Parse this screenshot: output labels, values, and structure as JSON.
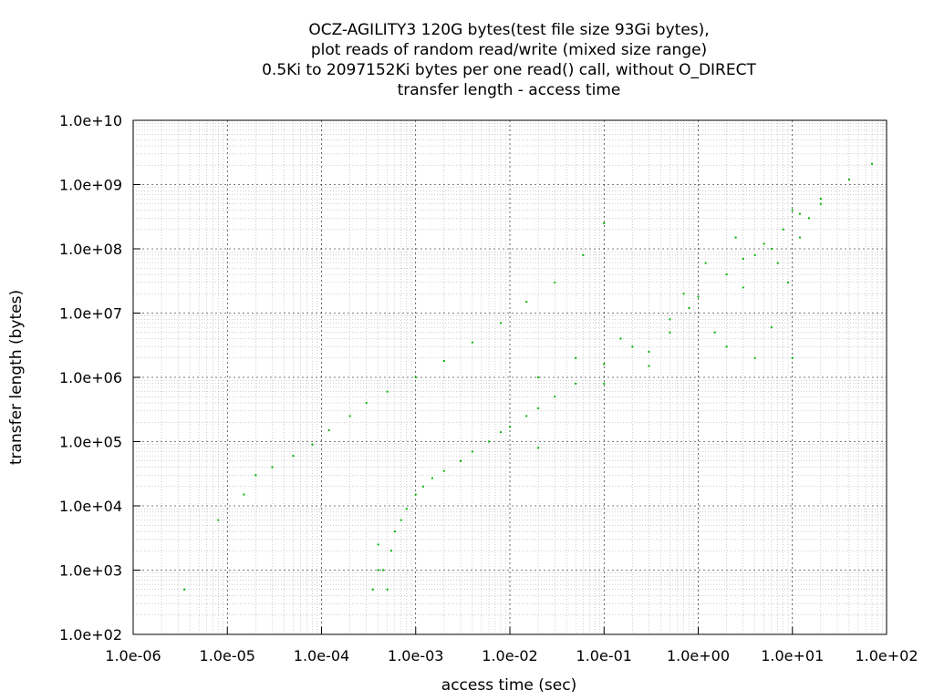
{
  "chart_data": {
    "type": "scatter",
    "title": [
      "OCZ-AGILITY3 120G bytes(test file size 93Gi bytes),",
      "plot reads of random read/write (mixed size range)",
      "0.5Ki to 2097152Ki bytes per one read() call, without O_DIRECT",
      "transfer length - access time"
    ],
    "xlabel": "access time (sec)",
    "ylabel": "transfer length (bytes)",
    "x_scale": "log",
    "y_scale": "log",
    "xlim": [
      1e-06,
      100
    ],
    "ylim": [
      100,
      10000000000.0
    ],
    "x_tick_labels": [
      "1.0e-06",
      "1.0e-05",
      "1.0e-04",
      "1.0e-03",
      "1.0e-02",
      "1.0e-01",
      "1.0e+00",
      "1.0e+01",
      "1.0e+02"
    ],
    "y_tick_labels": [
      "1.0e+02",
      "1.0e+03",
      "1.0e+04",
      "1.0e+05",
      "1.0e+06",
      "1.0e+07",
      "1.0e+08",
      "1.0e+09",
      "1.0e+10"
    ],
    "grid": true,
    "legend": "none",
    "colors": {
      "points": "#00b400",
      "grid": "#a0a0a0",
      "axes": "#000000"
    },
    "series": [
      {
        "description_free": true,
        "points": [
          [
            0.00035,
            500
          ],
          [
            0.0004,
            1000
          ],
          [
            0.0004,
            2500
          ],
          [
            0.00045,
            1000
          ],
          [
            0.0005,
            500
          ],
          [
            0.00055,
            2000
          ],
          [
            0.0006,
            4000
          ],
          [
            0.0007,
            6000
          ],
          [
            0.0008,
            9000
          ],
          [
            0.001,
            15000
          ],
          [
            0.0012,
            20000
          ],
          [
            0.0015,
            27000
          ],
          [
            0.002,
            35000
          ],
          [
            0.003,
            50000
          ],
          [
            0.004,
            70000
          ],
          [
            0.006,
            100000
          ],
          [
            0.008,
            140000
          ],
          [
            0.01,
            170000
          ],
          [
            0.015,
            250000
          ],
          [
            0.02,
            330000
          ],
          [
            0.03,
            500000
          ],
          [
            0.05,
            800000
          ],
          [
            0.1,
            1600000
          ],
          [
            0.2,
            3000000
          ],
          [
            0.5,
            8000000
          ],
          [
            1,
            18000000
          ],
          [
            2,
            40000000
          ],
          [
            3,
            70000000
          ],
          [
            5,
            120000000
          ],
          [
            8,
            200000000
          ],
          [
            12,
            350000000
          ],
          [
            20,
            600000000
          ],
          [
            40,
            1200000000
          ],
          [
            70,
            2100000000
          ],
          [
            3.5e-06,
            500
          ],
          [
            8e-06,
            6000
          ],
          [
            1.5e-05,
            15000
          ],
          [
            2e-05,
            30000
          ],
          [
            3e-05,
            40000
          ],
          [
            5e-05,
            60000
          ],
          [
            8e-05,
            90000
          ],
          [
            0.00012,
            150000
          ],
          [
            0.0002,
            250000
          ],
          [
            0.0003,
            400000
          ],
          [
            0.0005,
            600000
          ],
          [
            0.001,
            1000000
          ],
          [
            0.002,
            1800000
          ],
          [
            0.004,
            3500000
          ],
          [
            0.008,
            7000000
          ],
          [
            0.015,
            15000000
          ],
          [
            0.03,
            30000000
          ],
          [
            0.06,
            80000000
          ],
          [
            0.1,
            250000000
          ],
          [
            0.3,
            1500000
          ],
          [
            0.5,
            5000000
          ],
          [
            0.8,
            12000000
          ],
          [
            1.5,
            5000000
          ],
          [
            2,
            3000000
          ],
          [
            3,
            25000000
          ],
          [
            4,
            2000000
          ],
          [
            6,
            6000000
          ],
          [
            7,
            60000000
          ],
          [
            9,
            30000000
          ],
          [
            10,
            2000000
          ],
          [
            10,
            400000000
          ],
          [
            15,
            300000000
          ],
          [
            20,
            500000000
          ],
          [
            12,
            150000000
          ],
          [
            6,
            100000000
          ],
          [
            4,
            80000000
          ],
          [
            2.5,
            150000000
          ],
          [
            1.2,
            60000000
          ],
          [
            0.7,
            20000000
          ],
          [
            0.3,
            2500000
          ],
          [
            0.15,
            4000000
          ],
          [
            0.05,
            2000000
          ],
          [
            0.02,
            1000000
          ],
          [
            0.1,
            800000
          ],
          [
            0.02,
            80000
          ]
        ]
      }
    ]
  }
}
